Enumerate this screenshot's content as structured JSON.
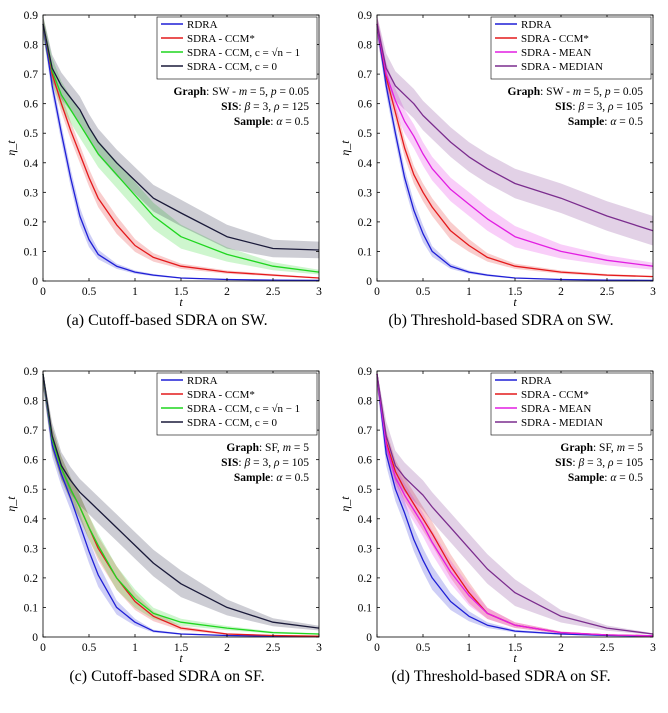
{
  "chart_data": [
    {
      "type": "line",
      "caption": "(a)  Cutoff-based SDRA on SW.",
      "xlabel": "t",
      "ylabel": "η_t",
      "xlim": [
        0,
        3
      ],
      "ylim": [
        0,
        0.9
      ],
      "xticks": [
        "0",
        "0.5",
        "1",
        "1.5",
        "2",
        "2.5",
        "3"
      ],
      "yticks": [
        "0",
        "0.1",
        "0.2",
        "0.3",
        "0.4",
        "0.5",
        "0.6",
        "0.7",
        "0.8",
        "0.9"
      ],
      "legend_position": "top-right",
      "annotations": [
        [
          {
            "t": "Graph",
            "b": true
          },
          {
            "t": ": SW - "
          },
          {
            "t": "m",
            "i": true
          },
          {
            "t": " = 5, "
          },
          {
            "t": "p",
            "i": true
          },
          {
            "t": " = 0.05"
          }
        ],
        [
          {
            "t": "SIS",
            "b": true
          },
          {
            "t": ": "
          },
          {
            "t": "β",
            "i": true
          },
          {
            "t": " = 3, "
          },
          {
            "t": "ρ",
            "i": true
          },
          {
            "t": " = 125"
          }
        ],
        [
          {
            "t": "Sample",
            "b": true
          },
          {
            "t": ": "
          },
          {
            "t": "α",
            "i": true
          },
          {
            "t": " = 0.5"
          }
        ]
      ],
      "series": [
        {
          "name": "RDRA",
          "color": "#1f1fd6",
          "x": [
            0,
            0.1,
            0.2,
            0.3,
            0.4,
            0.5,
            0.6,
            0.8,
            1.0,
            1.2,
            1.5,
            2.0,
            2.5,
            3.0
          ],
          "y": [
            0.87,
            0.66,
            0.5,
            0.35,
            0.22,
            0.14,
            0.09,
            0.05,
            0.03,
            0.02,
            0.01,
            0.005,
            0.003,
            0.002
          ],
          "band": 0.03
        },
        {
          "name": "SDRA - CCM*",
          "color": "#e41a1c",
          "x": [
            0,
            0.1,
            0.2,
            0.3,
            0.4,
            0.5,
            0.6,
            0.8,
            1.0,
            1.2,
            1.5,
            2.0,
            2.5,
            3.0
          ],
          "y": [
            0.87,
            0.7,
            0.6,
            0.51,
            0.43,
            0.35,
            0.28,
            0.19,
            0.12,
            0.08,
            0.05,
            0.03,
            0.02,
            0.01
          ],
          "band": 0.03
        },
        {
          "name": "SDRA - CCM, c = √n − 1",
          "color": "#1fd61f",
          "x": [
            0,
            0.1,
            0.2,
            0.3,
            0.4,
            0.5,
            0.6,
            0.8,
            1.0,
            1.2,
            1.5,
            2.0,
            2.5,
            3.0
          ],
          "y": [
            0.87,
            0.71,
            0.63,
            0.58,
            0.53,
            0.48,
            0.43,
            0.36,
            0.29,
            0.22,
            0.15,
            0.09,
            0.05,
            0.03
          ],
          "band": 0.045
        },
        {
          "name": "SDRA - CCM, c = 0",
          "color": "#1a1a3a",
          "x": [
            0,
            0.1,
            0.2,
            0.3,
            0.4,
            0.5,
            0.6,
            0.8,
            1.0,
            1.2,
            1.5,
            2.0,
            2.5,
            3.0
          ],
          "y": [
            0.87,
            0.72,
            0.66,
            0.62,
            0.58,
            0.52,
            0.47,
            0.4,
            0.34,
            0.28,
            0.23,
            0.15,
            0.11,
            0.105
          ],
          "band": 0.045
        }
      ]
    },
    {
      "type": "line",
      "caption": "(b)  Threshold-based SDRA on SW.",
      "xlabel": "t",
      "ylabel": "η_t",
      "xlim": [
        0,
        3
      ],
      "ylim": [
        0,
        0.9
      ],
      "xticks": [
        "0",
        "0.5",
        "1",
        "1.5",
        "2",
        "2.5",
        "3"
      ],
      "yticks": [
        "0",
        "0.1",
        "0.2",
        "0.3",
        "0.4",
        "0.5",
        "0.6",
        "0.7",
        "0.8",
        "0.9"
      ],
      "legend_position": "top-right",
      "annotations": [
        [
          {
            "t": "Graph",
            "b": true
          },
          {
            "t": ": SW - "
          },
          {
            "t": "m",
            "i": true
          },
          {
            "t": " = 5, "
          },
          {
            "t": "p",
            "i": true
          },
          {
            "t": " = 0.05"
          }
        ],
        [
          {
            "t": "SIS",
            "b": true
          },
          {
            "t": ": "
          },
          {
            "t": "β",
            "i": true
          },
          {
            "t": " = 3, "
          },
          {
            "t": "ρ",
            "i": true
          },
          {
            "t": " = 105"
          }
        ],
        [
          {
            "t": "Sample",
            "b": true
          },
          {
            "t": ": "
          },
          {
            "t": "α",
            "i": true
          },
          {
            "t": " = 0.5"
          }
        ]
      ],
      "series": [
        {
          "name": "RDRA",
          "color": "#1f1fd6",
          "x": [
            0,
            0.1,
            0.2,
            0.3,
            0.4,
            0.5,
            0.6,
            0.8,
            1.0,
            1.2,
            1.5,
            2.0,
            2.5,
            3.0
          ],
          "y": [
            0.87,
            0.66,
            0.5,
            0.35,
            0.24,
            0.16,
            0.1,
            0.05,
            0.03,
            0.02,
            0.01,
            0.005,
            0.003,
            0.002
          ],
          "band": 0.03
        },
        {
          "name": "SDRA - CCM*",
          "color": "#e41a1c",
          "x": [
            0,
            0.1,
            0.2,
            0.3,
            0.4,
            0.5,
            0.6,
            0.8,
            1.0,
            1.2,
            1.5,
            2.0,
            2.5,
            3.0
          ],
          "y": [
            0.87,
            0.69,
            0.57,
            0.45,
            0.36,
            0.3,
            0.25,
            0.17,
            0.12,
            0.08,
            0.05,
            0.03,
            0.02,
            0.015
          ],
          "band": 0.03
        },
        {
          "name": "SDRA - MEAN",
          "color": "#e21ee2",
          "x": [
            0,
            0.1,
            0.2,
            0.3,
            0.4,
            0.5,
            0.6,
            0.8,
            1.0,
            1.2,
            1.5,
            2.0,
            2.5,
            3.0
          ],
          "y": [
            0.87,
            0.7,
            0.61,
            0.54,
            0.49,
            0.43,
            0.38,
            0.31,
            0.26,
            0.21,
            0.15,
            0.1,
            0.07,
            0.05
          ],
          "band": 0.04
        },
        {
          "name": "SDRA - MEDIAN",
          "color": "#7b2d8e",
          "x": [
            0,
            0.1,
            0.2,
            0.3,
            0.4,
            0.5,
            0.6,
            0.8,
            1.0,
            1.2,
            1.5,
            2.0,
            2.5,
            3.0
          ],
          "y": [
            0.87,
            0.72,
            0.66,
            0.63,
            0.6,
            0.56,
            0.53,
            0.47,
            0.42,
            0.38,
            0.33,
            0.28,
            0.22,
            0.17
          ],
          "band": 0.05
        }
      ]
    },
    {
      "type": "line",
      "caption": "(c)  Cutoff-based SDRA on SF.",
      "xlabel": "t",
      "ylabel": "η_t",
      "xlim": [
        0,
        3
      ],
      "ylim": [
        0,
        0.9
      ],
      "xticks": [
        "0",
        "0.5",
        "1",
        "1.5",
        "2",
        "2.5",
        "3"
      ],
      "yticks": [
        "0",
        "0.1",
        "0.2",
        "0.3",
        "0.4",
        "0.5",
        "0.6",
        "0.7",
        "0.8",
        "0.9"
      ],
      "legend_position": "top-right",
      "annotations": [
        [
          {
            "t": "Graph",
            "b": true
          },
          {
            "t": ": SF, "
          },
          {
            "t": "m",
            "i": true
          },
          {
            "t": " = 5"
          }
        ],
        [
          {
            "t": "SIS",
            "b": true
          },
          {
            "t": ": "
          },
          {
            "t": "β",
            "i": true
          },
          {
            "t": " = 3, "
          },
          {
            "t": "ρ",
            "i": true
          },
          {
            "t": " = 105"
          }
        ],
        [
          {
            "t": "Sample",
            "b": true
          },
          {
            "t": ": "
          },
          {
            "t": "α",
            "i": true
          },
          {
            "t": " = 0.5"
          }
        ]
      ],
      "series": [
        {
          "name": "RDRA",
          "color": "#1f1fd6",
          "x": [
            0,
            0.1,
            0.2,
            0.3,
            0.4,
            0.5,
            0.6,
            0.8,
            1.0,
            1.2,
            1.5,
            2.0,
            2.5,
            3.0
          ],
          "y": [
            0.89,
            0.65,
            0.55,
            0.47,
            0.38,
            0.29,
            0.21,
            0.1,
            0.05,
            0.02,
            0.01,
            0.005,
            0.003,
            0.002
          ],
          "band": 0.04
        },
        {
          "name": "SDRA - CCM*",
          "color": "#e41a1c",
          "x": [
            0,
            0.1,
            0.2,
            0.3,
            0.4,
            0.5,
            0.6,
            0.8,
            1.0,
            1.2,
            1.5,
            2.0,
            2.5,
            3.0
          ],
          "y": [
            0.89,
            0.67,
            0.57,
            0.5,
            0.44,
            0.37,
            0.3,
            0.2,
            0.12,
            0.07,
            0.03,
            0.01,
            0.005,
            0.003
          ],
          "band": 0.04
        },
        {
          "name": "SDRA - CCM, c = √n − 1",
          "color": "#1fd61f",
          "x": [
            0,
            0.1,
            0.2,
            0.3,
            0.4,
            0.5,
            0.6,
            0.8,
            1.0,
            1.2,
            1.5,
            2.0,
            2.5,
            3.0
          ],
          "y": [
            0.89,
            0.67,
            0.57,
            0.5,
            0.44,
            0.37,
            0.31,
            0.2,
            0.13,
            0.08,
            0.05,
            0.03,
            0.015,
            0.01
          ],
          "band": 0.04
        },
        {
          "name": "SDRA - CCM, c = 0",
          "color": "#1a1a3a",
          "x": [
            0,
            0.1,
            0.2,
            0.3,
            0.4,
            0.5,
            0.6,
            0.8,
            1.0,
            1.2,
            1.5,
            2.0,
            2.5,
            3.0
          ],
          "y": [
            0.89,
            0.68,
            0.58,
            0.53,
            0.49,
            0.46,
            0.43,
            0.37,
            0.31,
            0.25,
            0.18,
            0.1,
            0.05,
            0.03
          ],
          "band": 0.045
        }
      ]
    },
    {
      "type": "line",
      "caption": "(d)  Threshold-based SDRA on SF.",
      "xlabel": "t",
      "ylabel": "η_t",
      "xlim": [
        0,
        3
      ],
      "ylim": [
        0,
        0.9
      ],
      "xticks": [
        "0",
        "0.5",
        "1",
        "1.5",
        "2",
        "2.5",
        "3"
      ],
      "yticks": [
        "0",
        "0.1",
        "0.2",
        "0.3",
        "0.4",
        "0.5",
        "0.6",
        "0.7",
        "0.8",
        "0.9"
      ],
      "legend_position": "top-right",
      "annotations": [
        [
          {
            "t": "Graph",
            "b": true
          },
          {
            "t": ": SF, "
          },
          {
            "t": "m",
            "i": true
          },
          {
            "t": " = 5"
          }
        ],
        [
          {
            "t": "SIS",
            "b": true
          },
          {
            "t": ": "
          },
          {
            "t": "β",
            "i": true
          },
          {
            "t": " = 3, "
          },
          {
            "t": "ρ",
            "i": true
          },
          {
            "t": " = 105"
          }
        ],
        [
          {
            "t": "Sample",
            "b": true
          },
          {
            "t": ": "
          },
          {
            "t": "α",
            "i": true
          },
          {
            "t": " = 0.5"
          }
        ]
      ],
      "series": [
        {
          "name": "RDRA",
          "color": "#1f1fd6",
          "x": [
            0,
            0.1,
            0.2,
            0.3,
            0.4,
            0.5,
            0.6,
            0.8,
            1.0,
            1.2,
            1.5,
            2.0,
            2.5,
            3.0
          ],
          "y": [
            0.89,
            0.62,
            0.5,
            0.42,
            0.33,
            0.26,
            0.2,
            0.12,
            0.07,
            0.04,
            0.02,
            0.01,
            0.005,
            0.003
          ],
          "band": 0.04
        },
        {
          "name": "SDRA - CCM*",
          "color": "#e41a1c",
          "x": [
            0,
            0.1,
            0.2,
            0.3,
            0.4,
            0.5,
            0.6,
            0.8,
            1.0,
            1.2,
            1.5,
            2.0,
            2.5,
            3.0
          ],
          "y": [
            0.89,
            0.66,
            0.56,
            0.5,
            0.45,
            0.4,
            0.35,
            0.24,
            0.15,
            0.08,
            0.04,
            0.015,
            0.007,
            0.004
          ],
          "band": 0.04
        },
        {
          "name": "SDRA - MEAN",
          "color": "#e21ee2",
          "x": [
            0,
            0.1,
            0.2,
            0.3,
            0.4,
            0.5,
            0.6,
            0.8,
            1.0,
            1.2,
            1.5,
            2.0,
            2.5,
            3.0
          ],
          "y": [
            0.89,
            0.65,
            0.54,
            0.48,
            0.43,
            0.38,
            0.32,
            0.22,
            0.14,
            0.08,
            0.04,
            0.015,
            0.007,
            0.004
          ],
          "band": 0.04
        },
        {
          "name": "SDRA - MEDIAN",
          "color": "#7b2d8e",
          "x": [
            0,
            0.1,
            0.2,
            0.3,
            0.4,
            0.5,
            0.6,
            0.8,
            1.0,
            1.2,
            1.5,
            2.0,
            2.5,
            3.0
          ],
          "y": [
            0.89,
            0.68,
            0.58,
            0.54,
            0.51,
            0.48,
            0.44,
            0.37,
            0.3,
            0.23,
            0.15,
            0.07,
            0.03,
            0.01
          ],
          "band": 0.05
        }
      ]
    }
  ]
}
